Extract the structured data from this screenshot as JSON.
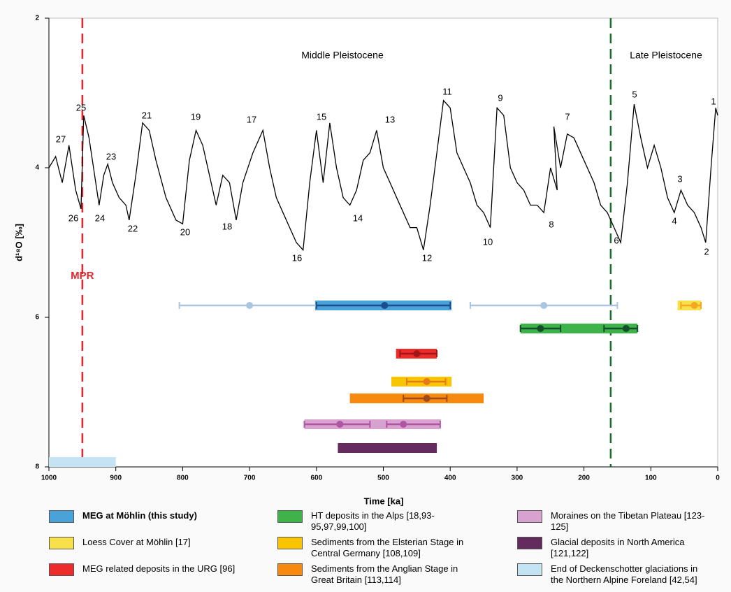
{
  "chart_data": {
    "type": "line",
    "xlabel": "Time [ka]",
    "ylabel": "d¹⁸O [‰]",
    "xlim": [
      1000,
      0
    ],
    "xticks": [
      1000,
      900,
      800,
      700,
      600,
      500,
      400,
      300,
      200,
      100,
      0
    ],
    "ylim": [
      2,
      8
    ],
    "yticks": [
      2,
      4,
      6,
      8
    ],
    "curve": {
      "color": "#000000",
      "x": [
        1000,
        990,
        980,
        970,
        960,
        952,
        948,
        940,
        930,
        925,
        918,
        912,
        905,
        895,
        885,
        880,
        870,
        860,
        850,
        840,
        825,
        810,
        800,
        790,
        780,
        770,
        760,
        750,
        740,
        730,
        720,
        710,
        695,
        680,
        670,
        660,
        650,
        640,
        630,
        620,
        610,
        600,
        590,
        580,
        570,
        560,
        550,
        540,
        530,
        520,
        510,
        500,
        490,
        480,
        470,
        460,
        450,
        440,
        430,
        420,
        410,
        400,
        390,
        380,
        370,
        360,
        350,
        340,
        330,
        320,
        310,
        300,
        290,
        280,
        270,
        260,
        250,
        240,
        245,
        235,
        225,
        215,
        200,
        185,
        175,
        165,
        155,
        145,
        135,
        125,
        115,
        105,
        95,
        85,
        75,
        65,
        55,
        45,
        35,
        25,
        18,
        10,
        3,
        0
      ],
      "values": [
        4.0,
        3.85,
        4.2,
        3.7,
        4.3,
        4.55,
        3.3,
        3.6,
        4.2,
        4.5,
        4.1,
        3.95,
        4.2,
        4.4,
        4.5,
        4.7,
        4.1,
        3.4,
        3.5,
        3.9,
        4.4,
        4.7,
        4.75,
        3.9,
        3.5,
        3.7,
        4.1,
        4.5,
        4.1,
        4.2,
        4.7,
        4.2,
        3.8,
        3.5,
        4.0,
        4.4,
        4.6,
        4.8,
        5.0,
        5.1,
        4.2,
        3.5,
        4.2,
        3.4,
        4.0,
        4.4,
        4.5,
        4.3,
        3.9,
        3.8,
        3.5,
        4.0,
        4.2,
        4.4,
        4.6,
        4.8,
        4.8,
        5.1,
        4.5,
        3.8,
        3.1,
        3.2,
        3.8,
        4.0,
        4.2,
        4.5,
        4.6,
        4.8,
        3.2,
        3.3,
        4.0,
        4.2,
        4.3,
        4.5,
        4.5,
        4.6,
        4.0,
        4.3,
        3.45,
        4.0,
        3.55,
        3.6,
        3.9,
        4.2,
        4.5,
        4.6,
        4.8,
        5.0,
        4.2,
        3.15,
        3.6,
        4.0,
        3.7,
        4.0,
        4.4,
        4.6,
        4.3,
        4.5,
        4.6,
        4.8,
        5.0,
        4.0,
        3.2,
        3.3
      ]
    },
    "stage_labels": [
      "27",
      "26",
      "25",
      "24",
      "23",
      "22",
      "21",
      "20",
      "19",
      "18",
      "17",
      "16",
      "15",
      "14",
      "13",
      "12",
      "11",
      "10",
      "9",
      "8",
      "7",
      "6",
      "5",
      "4",
      "3",
      "2",
      "1"
    ],
    "periods": [
      "Middle Pleistocene",
      "Late Pleistocene"
    ],
    "boundaries": [
      {
        "value": 950,
        "color": "#e8262a",
        "label": "MPR"
      },
      {
        "value": 160,
        "color": "#1d6b2e"
      }
    ],
    "ranges": [
      {
        "name": "MEG at Möhlin (this study)",
        "color": "#4aa3d8",
        "range": [
          602,
          398
        ],
        "points": [
          {
            "value": 700,
            "err": [
              805,
              600
            ],
            "color": "#a9c6de"
          },
          {
            "value": 498,
            "err": [
              600,
              400
            ],
            "color": "#1a4e8c"
          },
          {
            "value": 260,
            "err": [
              370,
              150
            ],
            "color": "#a9c6de"
          }
        ]
      },
      {
        "name": "Loess Cover at Möhlin [17]",
        "color": "#f7e04a",
        "range": [
          60,
          25
        ],
        "points": [
          {
            "value": 35,
            "err": [
              55,
              25
            ],
            "color": "#f4a81e"
          }
        ]
      },
      {
        "name": "MEG related deposits in the URG [96]",
        "color": "#ee2b2b",
        "range": [
          481,
          420
        ],
        "points": [
          {
            "value": 450,
            "err": [
              475,
              420
            ],
            "color": "#a01515"
          }
        ]
      },
      {
        "name": "HT deposits in the Alps [18,93-95,97,99,100]",
        "color": "#3db34a",
        "range": [
          295,
          120
        ],
        "points": [
          {
            "value": 265,
            "err": [
              295,
              235
            ],
            "color": "#12502a"
          },
          {
            "value": 137,
            "err": [
              170,
              120
            ],
            "color": "#12502a"
          }
        ]
      },
      {
        "name": "Sediments from the Elsterian Stage in Central Germany [108,109]",
        "color": "#f9c400",
        "range": [
          488,
          398
        ],
        "points": [
          {
            "value": 435,
            "err": [
              465,
              407
            ],
            "color": "#e6781e"
          }
        ]
      },
      {
        "name": "Sediments from the Anglian Stage in Great Britain [113,114]",
        "color": "#f7890f",
        "range": [
          550,
          350
        ],
        "points": [
          {
            "value": 435,
            "err": [
              470,
              405
            ],
            "color": "#9e4a1a"
          }
        ]
      },
      {
        "name": "Moraines on the Tibetan Plateau [123-125]",
        "color": "#d8a2d0",
        "range": [
          618,
          414
        ],
        "points": [
          {
            "value": 565,
            "err": [
              618,
              520
            ],
            "color": "#b0559f"
          },
          {
            "value": 470,
            "err": [
              495,
              415
            ],
            "color": "#b0559f"
          }
        ]
      },
      {
        "name": "Glacial deposits in North America [121,122]",
        "color": "#642b5e",
        "range": [
          568,
          420
        ],
        "points": []
      },
      {
        "name": "End of Deckenschotter glaciations in the Northern Alpine Foreland [42,54]",
        "color": "#c4e4f4",
        "range": [
          1000,
          900
        ],
        "points": []
      }
    ]
  }
}
